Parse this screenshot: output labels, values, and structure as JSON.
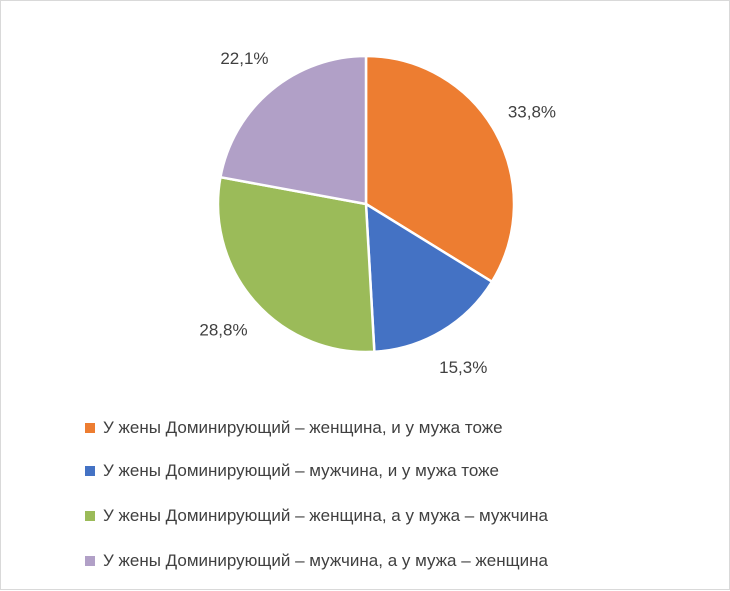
{
  "chart_data": {
    "type": "pie",
    "title": "",
    "slices": [
      {
        "label": "У жены Доминирующий – женщина, и у мужа тоже",
        "value": 33.8,
        "display": "33,8%",
        "color": "#ED7D31"
      },
      {
        "label": "У жены Доминирующий – мужчина, и у мужа тоже",
        "value": 15.3,
        "display": "15,3%",
        "color": "#4472C4"
      },
      {
        "label": "У жены Доминирующий – женщина, а у мужа – мужчина",
        "value": 28.8,
        "display": "28,8%",
        "color": "#9BBB59"
      },
      {
        "label": "У жены Доминирующий – мужчина, а у мужа – женщина",
        "value": 22.1,
        "display": "22,1%",
        "color": "#B1A0C7"
      }
    ],
    "legend_position": "bottom"
  }
}
